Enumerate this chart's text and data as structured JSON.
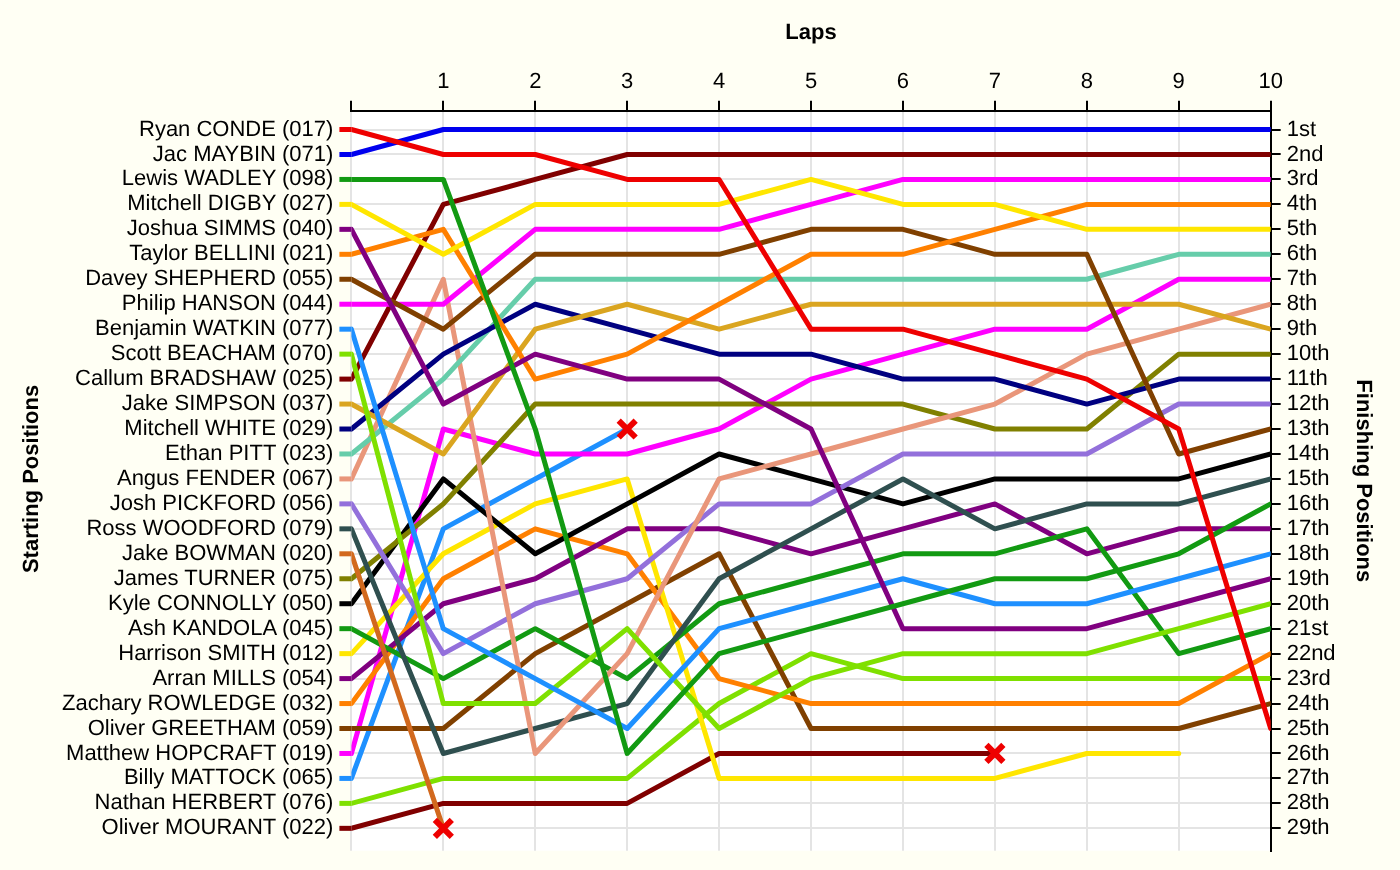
{
  "chart_data": {
    "type": "line",
    "xlabel": "Laps",
    "ylabel": "Finishing Positions",
    "legend_title": "Starting Positions",
    "grid": true,
    "legend": "left",
    "marker": "none",
    "line_style": "solid",
    "x": [
      0,
      1,
      2,
      3,
      4,
      5,
      6,
      7,
      8,
      9,
      10
    ],
    "xlim": [
      0,
      10
    ],
    "xticks": [
      {
        "value": 0,
        "label": null
      },
      1,
      2,
      3,
      4,
      5,
      6,
      7,
      8,
      9,
      10
    ],
    "ylim": [
      29.9,
      0.25
    ],
    "yticks": [
      {
        "value": 1,
        "label": "1st"
      },
      {
        "value": 2,
        "label": "2nd"
      },
      {
        "value": 3,
        "label": "3rd"
      },
      {
        "value": 4,
        "label": "4th"
      },
      {
        "value": 5,
        "label": "5th"
      },
      {
        "value": 6,
        "label": "6th"
      },
      {
        "value": 7,
        "label": "7th"
      },
      {
        "value": 8,
        "label": "8th"
      },
      {
        "value": 9,
        "label": "9th"
      },
      {
        "value": 10,
        "label": "10th"
      },
      {
        "value": 11,
        "label": "11th"
      },
      {
        "value": 12,
        "label": "12th"
      },
      {
        "value": 13,
        "label": "13th"
      },
      {
        "value": 14,
        "label": "14th"
      },
      {
        "value": 15,
        "label": "15th"
      },
      {
        "value": 16,
        "label": "16th"
      },
      {
        "value": 17,
        "label": "17th"
      },
      {
        "value": 18,
        "label": "18th"
      },
      {
        "value": 19,
        "label": "19th"
      },
      {
        "value": 20,
        "label": "20th"
      },
      {
        "value": 21,
        "label": "21st"
      },
      {
        "value": 22,
        "label": "22nd"
      },
      {
        "value": 23,
        "label": "23rd"
      },
      {
        "value": 24,
        "label": "24th"
      },
      {
        "value": 25,
        "label": "25th"
      },
      {
        "value": 26,
        "label": "26th"
      },
      {
        "value": 27,
        "label": "27th"
      },
      {
        "value": 28,
        "label": "28th"
      },
      {
        "value": 29,
        "label": "29th"
      }
    ],
    "series": [
      {
        "name": "Ryan CONDE (017)",
        "color": "#ee0000",
        "values": [
          1,
          2,
          2,
          3,
          3,
          9,
          9,
          10,
          11,
          13,
          25
        ]
      },
      {
        "name": "Jac MAYBIN (071)",
        "color": "#0000ee",
        "values": [
          2,
          1,
          1,
          1,
          1,
          1,
          1,
          1,
          1,
          1,
          1
        ]
      },
      {
        "name": "Lewis WADLEY (098)",
        "color": "#129a12",
        "values": [
          3,
          3,
          13,
          26,
          22,
          21,
          20,
          19,
          19,
          18,
          16
        ]
      },
      {
        "name": "Mitchell DIGBY (027)",
        "color": "#ffe600",
        "values": [
          4,
          6,
          4,
          4,
          4,
          3,
          4,
          4,
          5,
          5,
          5
        ]
      },
      {
        "name": "Joshua SIMMS (040)",
        "color": "#800080",
        "values": [
          5,
          12,
          10,
          11,
          11,
          13,
          21,
          21,
          21,
          20,
          19
        ]
      },
      {
        "name": "Taylor BELLINI (021)",
        "color": "#ff8000",
        "values": [
          6,
          5,
          11,
          10,
          8,
          6,
          6,
          5,
          4,
          4,
          4
        ]
      },
      {
        "name": "Davey SHEPHERD (055)",
        "color": "#804000",
        "values": [
          7,
          9,
          6,
          6,
          6,
          5,
          5,
          6,
          6,
          14,
          13
        ]
      },
      {
        "name": "Philip HANSON (044)",
        "color": "#ff00ff",
        "values": [
          8,
          8,
          5,
          5,
          5,
          4,
          3,
          3,
          3,
          3,
          3
        ]
      },
      {
        "name": "Benjamin WATKIN (077)",
        "color": "#1e90ff",
        "values": [
          9,
          21,
          23,
          25,
          21,
          20,
          19,
          20,
          20,
          19,
          18
        ]
      },
      {
        "name": "Scott BEACHAM (070)",
        "color": "#7fe000",
        "values": [
          10,
          24,
          24,
          21,
          25,
          23,
          22,
          22,
          22,
          21,
          20
        ]
      },
      {
        "name": "Callum BRADSHAW (025)",
        "color": "#800000",
        "values": [
          11,
          4,
          3,
          2,
          2,
          2,
          2,
          2,
          2,
          2,
          2
        ]
      },
      {
        "name": "Jake SIMPSON (037)",
        "color": "#daa520",
        "values": [
          12,
          14,
          9,
          8,
          9,
          8,
          8,
          8,
          8,
          8,
          9
        ]
      },
      {
        "name": "Mitchell WHITE (029)",
        "color": "#000080",
        "values": [
          13,
          10,
          8,
          9,
          10,
          10,
          11,
          11,
          12,
          11,
          11
        ]
      },
      {
        "name": "Ethan PITT (023)",
        "color": "#66cdaa",
        "values": [
          14,
          11,
          7,
          7,
          7,
          7,
          7,
          7,
          7,
          6,
          6
        ]
      },
      {
        "name": "Angus FENDER (067)",
        "color": "#e9967a",
        "values": [
          15,
          7,
          26,
          22,
          15,
          14,
          13,
          12,
          10,
          9,
          8
        ]
      },
      {
        "name": "Josh PICKFORD (056)",
        "color": "#9370db",
        "values": [
          16,
          22,
          20,
          19,
          16,
          16,
          14,
          14,
          14,
          12,
          12
        ]
      },
      {
        "name": "Ross WOODFORD (079)",
        "color": "#2f4f4f",
        "values": [
          17,
          26,
          25,
          24,
          19,
          17,
          15,
          17,
          16,
          16,
          15
        ]
      },
      {
        "name": "Jake BOWMAN (020)",
        "color": "#d2691e",
        "values": [
          18,
          29,
          null,
          null,
          null,
          null,
          null,
          null,
          null,
          null,
          null
        ]
      },
      {
        "name": "James TURNER (075)",
        "color": "#808000",
        "values": [
          19,
          16,
          12,
          12,
          12,
          12,
          12,
          13,
          13,
          10,
          10
        ]
      },
      {
        "name": "Kyle CONNOLLY (050)",
        "color": "#000000",
        "values": [
          20,
          15,
          18,
          16,
          14,
          15,
          16,
          15,
          15,
          15,
          14
        ]
      },
      {
        "name": "Ash KANDOLA (045)",
        "color": "#129a12",
        "values": [
          21,
          23,
          21,
          23,
          20,
          19,
          18,
          18,
          17,
          22,
          21
        ]
      },
      {
        "name": "Harrison SMITH (012)",
        "color": "#ffe600",
        "values": [
          22,
          18,
          16,
          15,
          27,
          27,
          27,
          27,
          26,
          26,
          null
        ]
      },
      {
        "name": "Arran MILLS (054)",
        "color": "#800080",
        "values": [
          23,
          20,
          19,
          17,
          17,
          18,
          17,
          16,
          18,
          17,
          17
        ]
      },
      {
        "name": "Zachary ROWLEDGE (032)",
        "color": "#ff8000",
        "values": [
          24,
          19,
          17,
          18,
          23,
          24,
          24,
          24,
          24,
          24,
          22
        ]
      },
      {
        "name": "Oliver GREETHAM (059)",
        "color": "#804000",
        "values": [
          25,
          25,
          22,
          20,
          18,
          25,
          25,
          25,
          25,
          25,
          24
        ]
      },
      {
        "name": "Matthew HOPCRAFT (019)",
        "color": "#ff00ff",
        "values": [
          26,
          13,
          14,
          14,
          13,
          11,
          10,
          9,
          9,
          7,
          7
        ]
      },
      {
        "name": "Billy MATTOCK (065)",
        "color": "#1e90ff",
        "values": [
          27,
          17,
          15,
          13,
          null,
          null,
          null,
          null,
          null,
          null,
          null
        ]
      },
      {
        "name": "Nathan HERBERT (076)",
        "color": "#7fe000",
        "values": [
          28,
          27,
          27,
          27,
          24,
          22,
          23,
          23,
          23,
          23,
          23
        ]
      },
      {
        "name": "Oliver MOURANT (022)",
        "color": "#800000",
        "values": [
          29,
          28,
          28,
          28,
          26,
          26,
          26,
          26,
          null,
          null,
          null
        ]
      },
      {
        "type": "scatter",
        "marker": "cross",
        "color": "#ee0000",
        "x": [
          1,
          3,
          7
        ],
        "values": [
          29,
          13,
          26
        ]
      }
    ]
  }
}
